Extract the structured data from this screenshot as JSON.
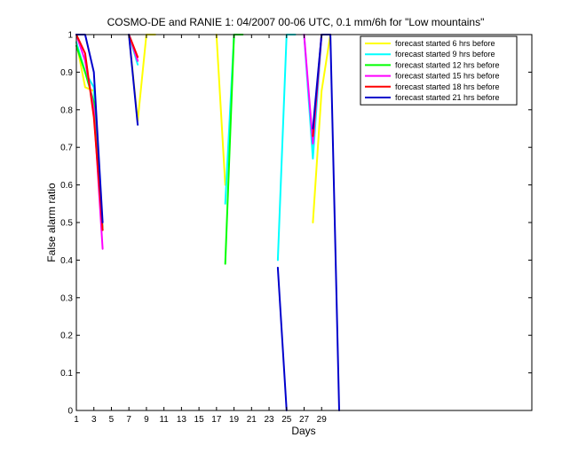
{
  "chart_data": {
    "type": "line",
    "title": "COSMO-DE and RANIE 1: 04/2007 00-06 UTC, 0.1 mm/6h for \"Low mountains\"",
    "xlabel": "Days",
    "ylabel": "False alarm ratio",
    "xlim": [
      1,
      53
    ],
    "ylim": [
      0,
      1
    ],
    "xticks": [
      1,
      3,
      5,
      7,
      9,
      11,
      13,
      15,
      17,
      19,
      21,
      23,
      25,
      27,
      29
    ],
    "yticks": [
      0,
      0.1,
      0.2,
      0.3,
      0.4,
      0.5,
      0.6,
      0.7,
      0.8,
      0.9,
      1
    ],
    "ytick_labels": [
      "0",
      "0.1",
      "0.2",
      "0.3",
      "0.4",
      "0.5",
      "0.6",
      "0.7",
      "0.8",
      "0.9",
      "1"
    ],
    "grid": false,
    "legend_position": "top-right",
    "series": [
      {
        "name": "forecast started 6 hrs before",
        "color": "#ffff00",
        "segments": [
          [
            [
              1,
              0.98
            ],
            [
              2,
              0.86
            ],
            [
              3,
              0.85
            ],
            [
              4,
              0.48
            ]
          ],
          [
            [
              7,
              1.0
            ],
            [
              8,
              0.77
            ],
            [
              9,
              1.0
            ],
            [
              10,
              1.0
            ]
          ],
          [
            [
              17,
              1.0
            ],
            [
              18,
              0.6
            ]
          ],
          [
            [
              28,
              0.5
            ],
            [
              29,
              0.85
            ],
            [
              30,
              1.0
            ]
          ]
        ]
      },
      {
        "name": "forecast started 9 hrs before",
        "color": "#00ffff",
        "segments": [
          [
            [
              1,
              0.98
            ],
            [
              2,
              0.9
            ],
            [
              3,
              0.86
            ],
            [
              4,
              0.48
            ]
          ],
          [
            [
              7,
              1.0
            ],
            [
              8,
              0.92
            ]
          ],
          [
            [
              18,
              0.55
            ],
            [
              19,
              1.0
            ]
          ],
          [
            [
              24,
              0.4
            ],
            [
              25,
              1.0
            ],
            [
              26,
              1.0
            ]
          ],
          [
            [
              27,
              1.0
            ],
            [
              28,
              0.67
            ],
            [
              29,
              1.0
            ]
          ]
        ]
      },
      {
        "name": "forecast started 12 hrs before",
        "color": "#00ff00",
        "segments": [
          [
            [
              1,
              0.97
            ],
            [
              2,
              0.9
            ],
            [
              3,
              0.82
            ],
            [
              4,
              0.48
            ]
          ],
          [
            [
              7,
              1.0
            ],
            [
              8,
              0.93
            ]
          ],
          [
            [
              18,
              0.39
            ],
            [
              19,
              1.0
            ],
            [
              20,
              1.0
            ]
          ]
        ]
      },
      {
        "name": "forecast started 15 hrs before",
        "color": "#ff00ff",
        "segments": [
          [
            [
              1,
              1.0
            ],
            [
              2,
              0.93
            ],
            [
              3,
              0.8
            ],
            [
              4,
              0.43
            ]
          ],
          [
            [
              7,
              1.0
            ],
            [
              8,
              0.93
            ]
          ],
          [
            [
              27,
              1.0
            ],
            [
              28,
              0.71
            ],
            [
              29,
              1.0
            ],
            [
              30,
              1.0
            ]
          ]
        ]
      },
      {
        "name": "forecast started 18 hrs before",
        "color": "#ff0000",
        "segments": [
          [
            [
              1,
              1.0
            ],
            [
              2,
              0.95
            ],
            [
              3,
              0.78
            ],
            [
              4,
              0.48
            ]
          ],
          [
            [
              7,
              1.0
            ],
            [
              8,
              0.94
            ]
          ],
          [
            [
              28,
              0.73
            ],
            [
              29,
              1.0
            ],
            [
              30,
              1.0
            ]
          ]
        ]
      },
      {
        "name": "forecast started 21 hrs before",
        "color": "#0000cc",
        "segments": [
          [
            [
              1,
              1.0
            ],
            [
              2,
              1.0
            ],
            [
              3,
              0.9
            ],
            [
              4,
              0.5
            ]
          ],
          [
            [
              7,
              1.0
            ],
            [
              8,
              0.76
            ]
          ],
          [
            [
              24,
              0.38
            ],
            [
              25,
              0.0
            ]
          ],
          [
            [
              28,
              0.75
            ],
            [
              29,
              1.0
            ],
            [
              30,
              1.0
            ],
            [
              31,
              0.0
            ]
          ]
        ]
      }
    ]
  }
}
